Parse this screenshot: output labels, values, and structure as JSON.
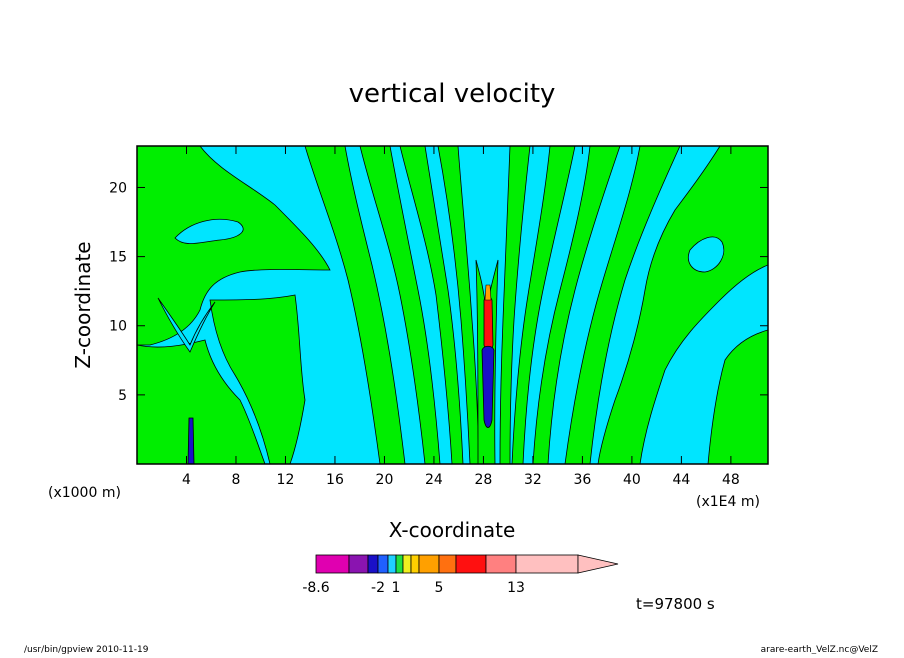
{
  "chart_data": {
    "type": "contour",
    "title": "vertical velocity",
    "xlabel": "X-coordinate",
    "ylabel": "Z-coordinate",
    "x_unit_left": "(x1000 m)",
    "x_unit_right": "(x1E4 m)",
    "xlim": [
      0,
      51
    ],
    "ylim": [
      0,
      23
    ],
    "x_ticks": [
      4,
      8,
      12,
      16,
      20,
      24,
      28,
      32,
      36,
      40,
      44,
      48
    ],
    "y_ticks": [
      5,
      10,
      15,
      20
    ],
    "colorbar": {
      "colors": [
        "#e000b0",
        "#8a14b0",
        "#1a10c8",
        "#2060ff",
        "#20d0ff",
        "#20e040",
        "#f0f020",
        "#ffd000",
        "#ffa000",
        "#ff7010",
        "#ff1010",
        "#ff8080",
        "#ffc0c0"
      ],
      "tick_labels": [
        "-8.6",
        "-2",
        "1",
        "5",
        "13"
      ]
    },
    "time_label": "t=97800 s",
    "footer_left": "/usr/bin/gpview   2010-11-19",
    "footer_right": "arare-earth_VelZ.nc@VelZ"
  }
}
